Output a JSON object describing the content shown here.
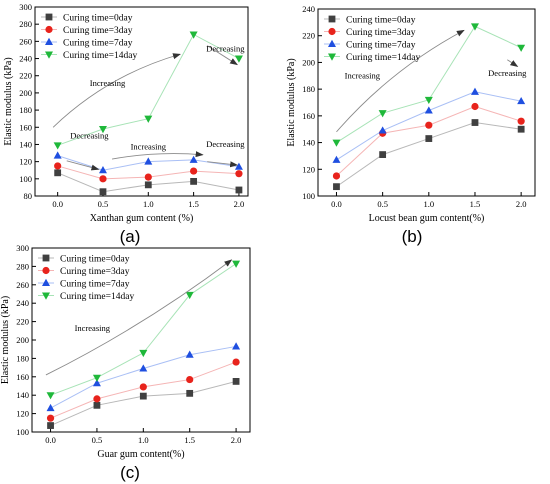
{
  "figure": {
    "panels": [
      "(a)",
      "(b)",
      "(c)"
    ]
  },
  "colors": {
    "series": [
      "#404040",
      "#e8231c",
      "#1f4fe0",
      "#1fb83a"
    ],
    "line": [
      "#b8b8b8",
      "#f5b5b5",
      "#a9bff5",
      "#a7e3b6"
    ],
    "arrow": "#8a8a8a",
    "axis": "#000000"
  },
  "chart_data": [
    {
      "type": "line",
      "panel": "(a)",
      "xlabel": "Xanthan gum content (%)",
      "ylabel": "Elastic modulus (kPa)",
      "x": [
        0.0,
        0.5,
        1.0,
        1.5,
        2.0
      ],
      "xticks": [
        "0.0",
        "0.5",
        "1.0",
        "1.5",
        "2.0"
      ],
      "xlim": [
        -0.25,
        2.1
      ],
      "ylim": [
        80,
        300
      ],
      "yticks": [
        80,
        100,
        120,
        140,
        160,
        180,
        200,
        220,
        240,
        260,
        280,
        300
      ],
      "legend": "top-left",
      "grid": false,
      "series": [
        {
          "name": "Curing time=0day",
          "marker": "square",
          "values": [
            107,
            85,
            93,
            97,
            87
          ]
        },
        {
          "name": "Curing time=3day",
          "marker": "circle",
          "values": [
            115,
            100,
            102,
            109,
            106
          ]
        },
        {
          "name": "Curing time=7day",
          "marker": "triangle-up",
          "values": [
            127,
            110,
            120,
            122,
            114
          ]
        },
        {
          "name": "Curing time=14day",
          "marker": "triangle-down",
          "values": [
            139,
            158,
            170,
            268,
            240
          ]
        }
      ],
      "annotations": [
        {
          "text": "Increasing",
          "x": 0.55,
          "y": 208
        },
        {
          "text": "Decreasing",
          "x": 1.85,
          "y": 248
        },
        {
          "text": "Decreasing",
          "x": 0.35,
          "y": 147
        },
        {
          "text": "Increasing",
          "x": 1.0,
          "y": 134
        },
        {
          "text": "Decreasing",
          "x": 1.85,
          "y": 137
        }
      ],
      "arrows": [
        {
          "from": [
            -0.05,
            160
          ],
          "to": [
            1.35,
            245
          ],
          "curve": -18
        },
        {
          "from": [
            1.65,
            255
          ],
          "to": [
            1.98,
            233
          ],
          "curve": 0
        },
        {
          "from": [
            0.1,
            121
          ],
          "to": [
            0.45,
            111
          ],
          "curve": 0
        },
        {
          "from": [
            0.6,
            123
          ],
          "to": [
            1.6,
            128
          ],
          "curve": -6
        },
        {
          "from": [
            1.65,
            120
          ],
          "to": [
            1.98,
            116
          ],
          "curve": 0
        }
      ]
    },
    {
      "type": "line",
      "panel": "(b)",
      "xlabel": "Locust bean gum content(%)",
      "ylabel": "Elastic modulus (kPa)",
      "x": [
        0.0,
        0.5,
        1.0,
        1.5,
        2.0
      ],
      "xticks": [
        "0.0",
        "0.5",
        "1.0",
        "1.5",
        "2.0"
      ],
      "xlim": [
        -0.2,
        2.15
      ],
      "ylim": [
        100,
        240
      ],
      "yticks": [
        100,
        120,
        140,
        160,
        180,
        200,
        220,
        240
      ],
      "legend": "top-left",
      "grid": false,
      "series": [
        {
          "name": "Curing time=0day",
          "marker": "square",
          "values": [
            107,
            131,
            143,
            155,
            150
          ]
        },
        {
          "name": "Curing time=3day",
          "marker": "circle",
          "values": [
            115,
            147,
            153,
            167,
            156
          ]
        },
        {
          "name": "Curing time=7day",
          "marker": "triangle-up",
          "values": [
            127,
            149,
            164,
            178,
            171
          ]
        },
        {
          "name": "Curing time=14day",
          "marker": "triangle-down",
          "values": [
            140,
            162,
            172,
            227,
            211
          ]
        }
      ],
      "annotations": [
        {
          "text": "Increasing",
          "x": 0.28,
          "y": 188
        },
        {
          "text": "Decreasing",
          "x": 1.85,
          "y": 190
        }
      ],
      "arrows": [
        {
          "from": [
            0.0,
            148
          ],
          "to": [
            1.38,
            224
          ],
          "curve": -15
        },
        {
          "from": [
            1.85,
            202
          ],
          "to": [
            1.96,
            197
          ],
          "curve": 0
        }
      ]
    },
    {
      "type": "line",
      "panel": "(c)",
      "xlabel": "Guar gum content(%)",
      "ylabel": "Elastic modulus (kPa)",
      "x": [
        0.0,
        0.5,
        1.0,
        1.5,
        2.0
      ],
      "xticks": [
        "0.0",
        "0.5",
        "1.0",
        "1.5",
        "2.0"
      ],
      "xlim": [
        -0.2,
        2.15
      ],
      "ylim": [
        100,
        300
      ],
      "yticks": [
        100,
        120,
        140,
        160,
        180,
        200,
        220,
        240,
        260,
        280,
        300
      ],
      "legend": "top-left",
      "grid": false,
      "series": [
        {
          "name": "Curing time=0day",
          "marker": "square",
          "values": [
            107,
            129,
            139,
            142,
            155
          ]
        },
        {
          "name": "Curing time=3day",
          "marker": "circle",
          "values": [
            115,
            136,
            149,
            157,
            176
          ]
        },
        {
          "name": "Curing time=7day",
          "marker": "triangle-up",
          "values": [
            126,
            153,
            169,
            184,
            193
          ]
        },
        {
          "name": "Curing time=14day",
          "marker": "triangle-down",
          "values": [
            140,
            159,
            186,
            249,
            283
          ]
        }
      ],
      "annotations": [
        {
          "text": "Increasing",
          "x": 0.45,
          "y": 210
        }
      ],
      "arrows": [
        {
          "from": [
            -0.05,
            162
          ],
          "to": [
            1.95,
            287
          ],
          "curve": 10
        }
      ]
    }
  ]
}
